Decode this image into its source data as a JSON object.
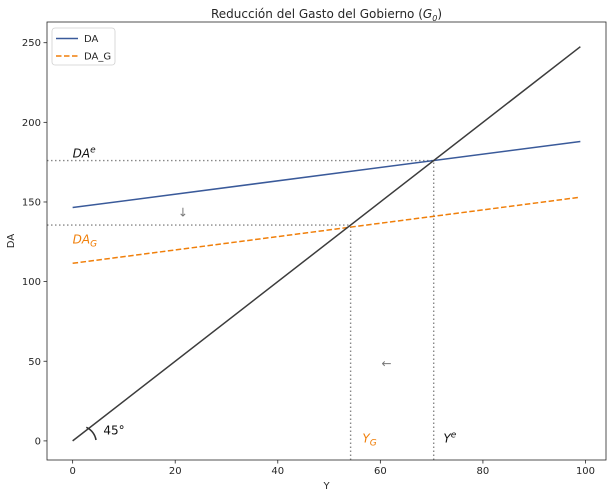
{
  "chart_data": {
    "type": "line",
    "title_main": "Reducción del Gasto del Gobierno (",
    "title_sym": "G",
    "title_sub": "0",
    "title_end": ")",
    "xlabel": "Y",
    "ylabel": "DA",
    "xlim": [
      -5,
      104
    ],
    "ylim": [
      -12,
      263
    ],
    "xticks": [
      0,
      20,
      40,
      60,
      80,
      100
    ],
    "yticks": [
      0,
      50,
      100,
      150,
      200,
      250
    ],
    "grid": false,
    "legend_placement": "top-left",
    "series": [
      {
        "name": "DA",
        "color": "#3a5a9a",
        "style": "solid",
        "x": [
          0,
          99
        ],
        "y": [
          146.5,
          188
        ]
      },
      {
        "name": "DA_G",
        "color": "#f07f0a",
        "style": "dashed",
        "x": [
          0,
          99
        ],
        "y": [
          111.5,
          153
        ]
      },
      {
        "color": "#3c3c3c",
        "style": "solid",
        "x": [
          0,
          99
        ],
        "y": [
          0,
          247.5
        ]
      }
    ],
    "reference_lines": [
      {
        "orientation": "horizontal",
        "y": 176,
        "x_to": 70.4,
        "color": "#888888"
      },
      {
        "orientation": "horizontal",
        "y": 135.5,
        "x_to": 54.2,
        "color": "#888888"
      },
      {
        "orientation": "vertical",
        "x": 70.4,
        "y_to": 176,
        "color": "#888888"
      },
      {
        "orientation": "vertical",
        "x": 54.2,
        "y_to": 135.5,
        "color": "#888888"
      }
    ],
    "annotations": {
      "da_e": {
        "base": "DA",
        "sup": "e",
        "x": 0,
        "y": 178,
        "color": "#111111"
      },
      "da_g": {
        "base": "DA",
        "sub": "G",
        "x": 0,
        "y": 124,
        "color": "#f07f0a"
      },
      "y_g": {
        "base": "Y",
        "sub": "G",
        "x": 56.5,
        "y": -1,
        "color": "#f07f0a"
      },
      "y_e": {
        "base": "Y",
        "sup": "e",
        "x": 72.3,
        "y": -1,
        "color": "#111111"
      },
      "angle": {
        "text": "45°",
        "x": 6,
        "y": 4,
        "color": "#111111"
      },
      "arrow_down": {
        "text": "↓",
        "x": 21.5,
        "y": 141,
        "color": "#777777"
      },
      "arrow_left": {
        "text": "←",
        "x": 61.2,
        "y": 46,
        "color": "#777777"
      }
    }
  }
}
